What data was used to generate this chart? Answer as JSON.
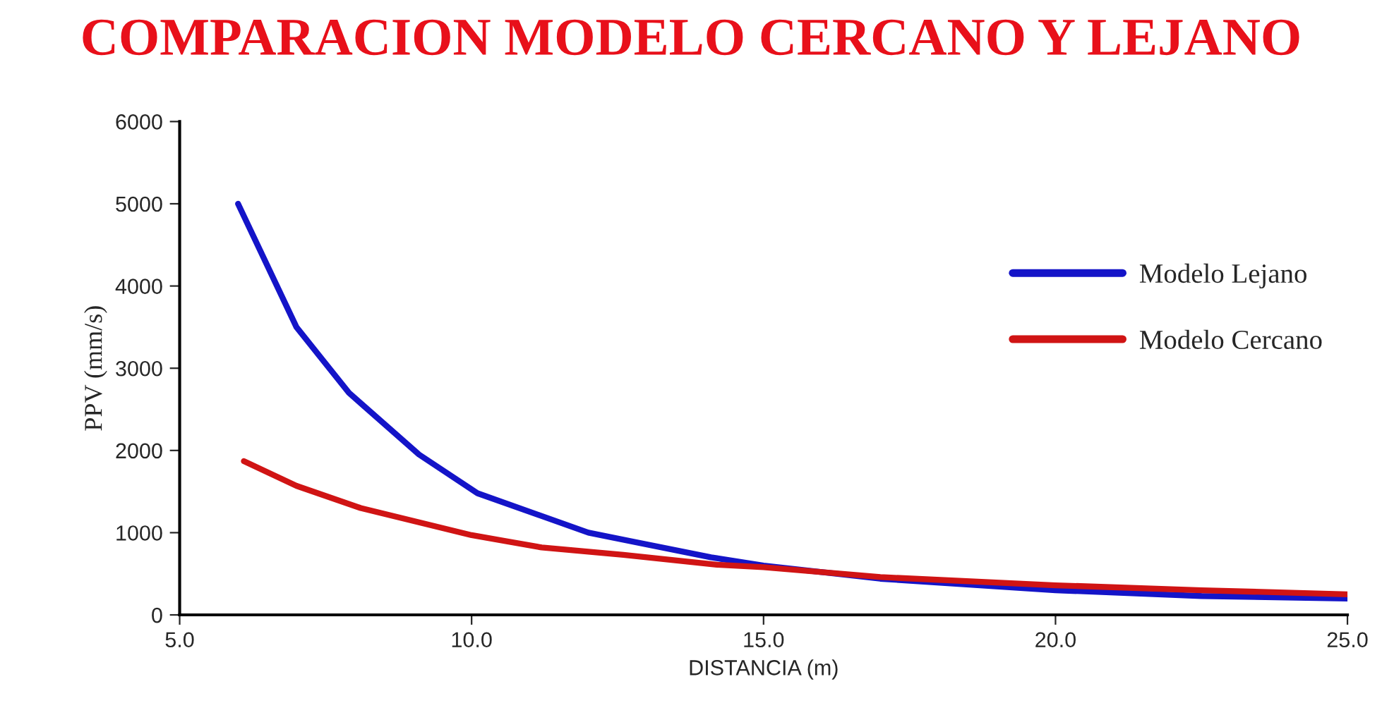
{
  "chart_data": {
    "type": "line",
    "title": "COMPARACION MODELO CERCANO Y LEJANO",
    "xlabel": "DISTANCIA (m)",
    "ylabel": "PPV (mm/s)",
    "xlim": [
      5,
      25
    ],
    "xticks": [
      {
        "value": 5,
        "label": "5.0"
      },
      {
        "value": 10,
        "label": "10.0"
      },
      {
        "value": 15,
        "label": "15.0"
      },
      {
        "value": 20,
        "label": "20.0"
      },
      {
        "value": 25,
        "label": "25.0"
      }
    ],
    "ylim": [
      0,
      6000
    ],
    "yticks": [
      0,
      1000,
      2000,
      3000,
      4000,
      5000,
      6000
    ],
    "grid": false,
    "legend": "right",
    "series": [
      {
        "name": "Modelo Lejano",
        "color": "#1414c8",
        "x": [
          6.0,
          7.0,
          7.9,
          9.1,
          10.1,
          12.0,
          14.1,
          15.0,
          17.0,
          20.0,
          22.5,
          25.0
        ],
        "values": [
          5000,
          3500,
          2700,
          1950,
          1480,
          1000,
          700,
          600,
          440,
          300,
          230,
          200
        ]
      },
      {
        "name": "Modelo Cercano",
        "color": "#d01414",
        "x": [
          6.1,
          7.0,
          8.1,
          10.0,
          11.2,
          12.6,
          14.2,
          15.0,
          17.0,
          20.0,
          22.5,
          25.0
        ],
        "values": [
          1870,
          1570,
          1300,
          970,
          820,
          730,
          610,
          580,
          460,
          360,
          300,
          250
        ]
      }
    ]
  }
}
